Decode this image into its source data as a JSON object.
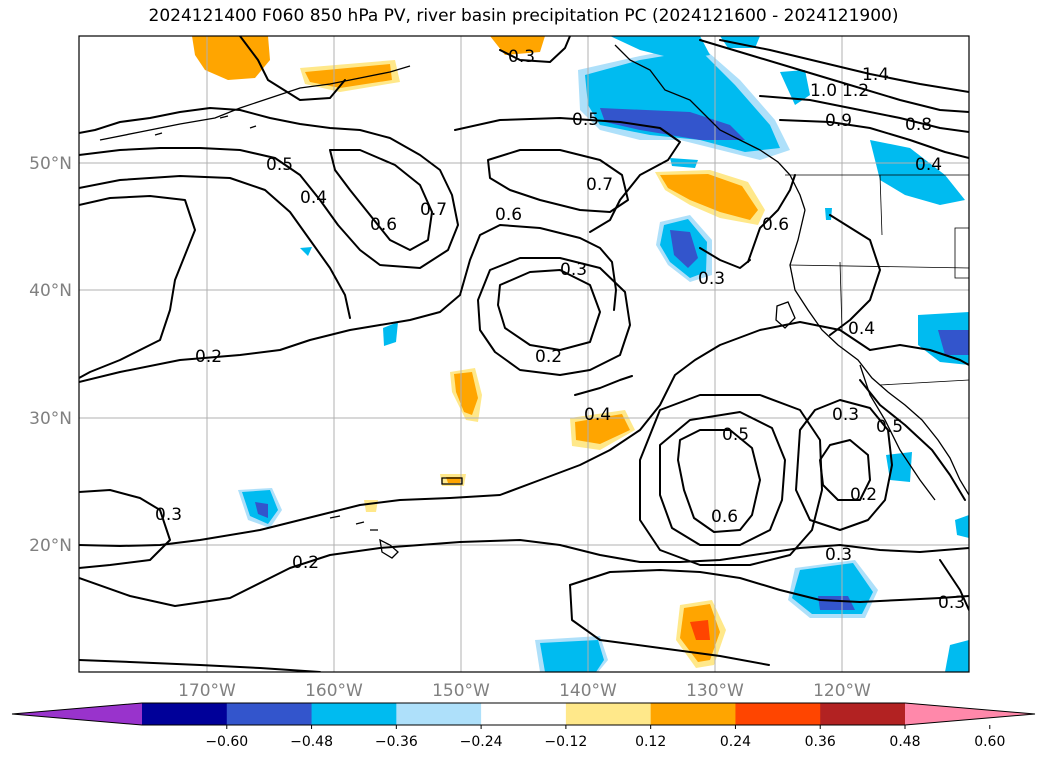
{
  "title": "2024121400 F060 850 hPa PV, river basin precipitation PC (2024121600 - 2024121900)",
  "map": {
    "lon_labels": [
      "170°W",
      "160°W",
      "150°W",
      "140°W",
      "130°W",
      "120°W"
    ],
    "lat_labels": [
      "50°N",
      "40°N",
      "30°N",
      "20°N"
    ]
  },
  "contour_labels": [
    "0.3",
    "1.4",
    "1.2",
    "1.0",
    "0.5",
    "0.9",
    "0.8",
    "0.4",
    "0.5",
    "0.4",
    "0.7",
    "0.6",
    "0.7",
    "0.6",
    "0.6",
    "0.3",
    "0.3",
    "0.2",
    "0.2",
    "0.4",
    "0.4",
    "0.5",
    "0.3",
    "0.5",
    "0.6",
    "0.2",
    "0.3",
    "0.2",
    "0.3",
    "0.3"
  ],
  "colorbar": {
    "colors": [
      "#9933cc",
      "#000099",
      "#3355cc",
      "#00bbf0",
      "#aee0fa",
      "#ffffff",
      "#ffe88a",
      "#ffa500",
      "#ff4500",
      "#b22222",
      "#ff88aa"
    ],
    "ticks": [
      "−0.60",
      "−0.48",
      "−0.36",
      "−0.24",
      "−0.12",
      "0.12",
      "0.24",
      "0.36",
      "0.48",
      "0.60"
    ]
  }
}
